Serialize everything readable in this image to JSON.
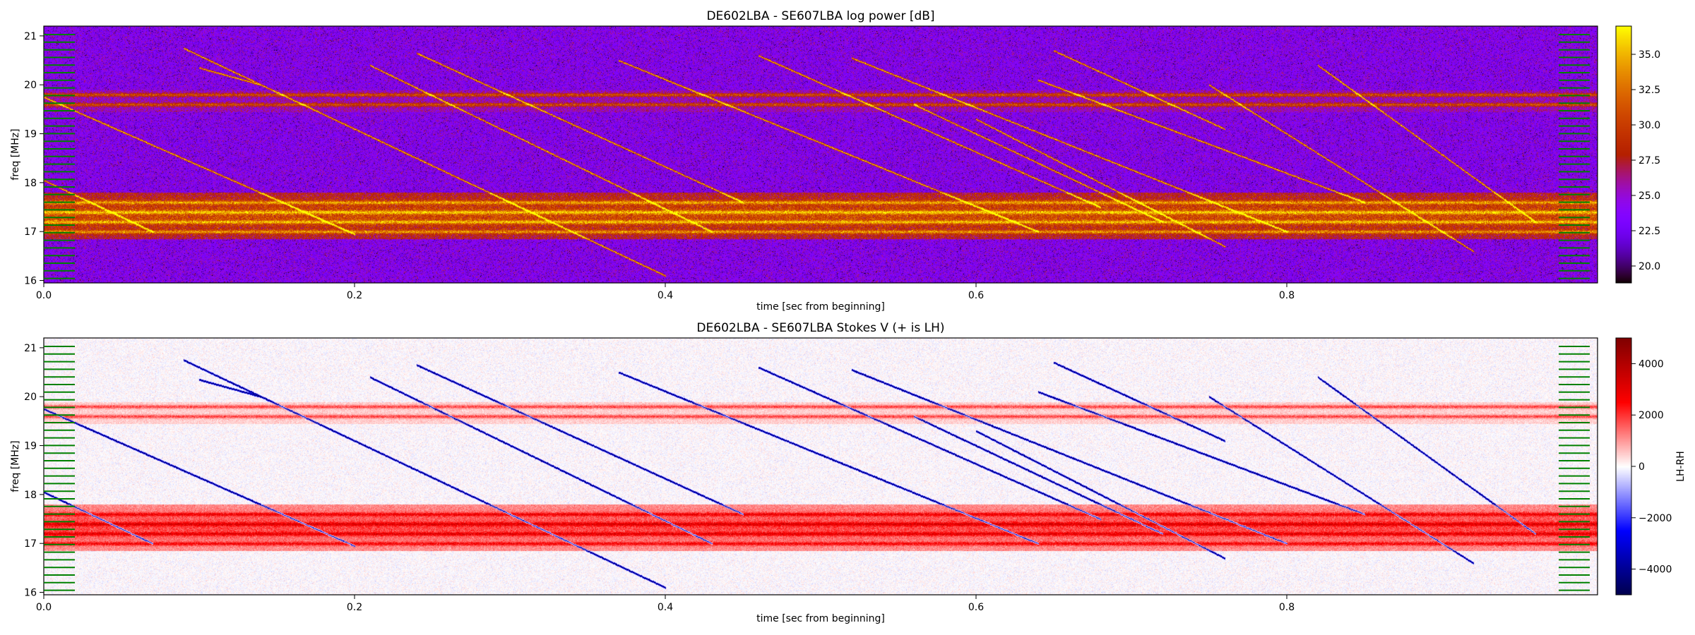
{
  "chart_data": [
    {
      "type": "heatmap",
      "title": "DE602LBA - SE607LBA  log power [dB]",
      "xlabel": "time [sec from beginning]",
      "ylabel": "freq [MHz]",
      "xlim": [
        0.0,
        1.0
      ],
      "ylim": [
        15.95,
        21.2
      ],
      "x_ticks": [
        0.0,
        0.2,
        0.4,
        0.6,
        0.8
      ],
      "x_tick_labels": [
        "0.0",
        "0.2",
        "0.4",
        "0.6",
        "0.8"
      ],
      "y_ticks": [
        16,
        17,
        18,
        19,
        20,
        21
      ],
      "y_tick_labels": [
        "16",
        "17",
        "18",
        "19",
        "20",
        "21"
      ],
      "colormap": "gnuplot",
      "colorbar": {
        "label": "",
        "range": [
          18.8,
          37.0
        ],
        "ticks": [
          20.0,
          22.5,
          25.0,
          27.5,
          30.0,
          32.5,
          35.0
        ],
        "tick_labels": [
          "20.0",
          "22.5",
          "25.0",
          "27.5",
          "30.0",
          "32.5",
          "35.0"
        ]
      },
      "background_level_db": 23.5,
      "rfi_bands_mhz": [
        17.0,
        17.2,
        17.4,
        17.6,
        19.6,
        19.8
      ],
      "drifting_tracks": [
        {
          "t0": 0.0,
          "f0": 19.75,
          "t1": 0.2,
          "f1": 16.95
        },
        {
          "t0": 0.0,
          "f0": 18.05,
          "t1": 0.07,
          "f1": 17.0
        },
        {
          "t0": 0.09,
          "f0": 20.75,
          "t1": 0.4,
          "f1": 16.1
        },
        {
          "t0": 0.1,
          "f0": 20.35,
          "t1": 0.14,
          "f1": 20.0
        },
        {
          "t0": 0.21,
          "f0": 20.4,
          "t1": 0.43,
          "f1": 17.0
        },
        {
          "t0": 0.24,
          "f0": 20.65,
          "t1": 0.45,
          "f1": 17.6
        },
        {
          "t0": 0.37,
          "f0": 20.5,
          "t1": 0.64,
          "f1": 17.0
        },
        {
          "t0": 0.46,
          "f0": 20.6,
          "t1": 0.68,
          "f1": 17.5
        },
        {
          "t0": 0.52,
          "f0": 20.55,
          "t1": 0.8,
          "f1": 17.0
        },
        {
          "t0": 0.56,
          "f0": 19.6,
          "t1": 0.72,
          "f1": 17.2
        },
        {
          "t0": 0.6,
          "f0": 19.3,
          "t1": 0.76,
          "f1": 16.7
        },
        {
          "t0": 0.64,
          "f0": 20.1,
          "t1": 0.85,
          "f1": 17.6
        },
        {
          "t0": 0.65,
          "f0": 20.7,
          "t1": 0.76,
          "f1": 19.1
        },
        {
          "t0": 0.75,
          "f0": 20.0,
          "t1": 0.92,
          "f1": 16.6
        },
        {
          "t0": 0.82,
          "f0": 20.4,
          "t1": 0.96,
          "f1": 17.2
        }
      ],
      "green_marker_columns": [
        {
          "t0": 0.0,
          "t1": 0.02
        },
        {
          "t0": 0.975,
          "t1": 0.995
        }
      ]
    },
    {
      "type": "heatmap",
      "title": "DE602LBA - SE607LBA    Stokes V (+ is LH)",
      "xlabel": "time [sec from beginning]",
      "ylabel": "freq [MHz]",
      "xlim": [
        0.0,
        1.0
      ],
      "ylim": [
        15.95,
        21.2
      ],
      "x_ticks": [
        0.0,
        0.2,
        0.4,
        0.6,
        0.8
      ],
      "x_tick_labels": [
        "0.0",
        "0.2",
        "0.4",
        "0.6",
        "0.8"
      ],
      "y_ticks": [
        16,
        17,
        18,
        19,
        20,
        21
      ],
      "y_tick_labels": [
        "16",
        "17",
        "18",
        "19",
        "20",
        "21"
      ],
      "colormap": "seismic",
      "colorbar": {
        "label": "LH-RH",
        "range": [
          -5000,
          5000
        ],
        "ticks": [
          -4000,
          -2000,
          0,
          2000,
          4000
        ],
        "tick_labels": [
          "−4000",
          "−2000",
          "0",
          "2000",
          "4000"
        ]
      },
      "rfi_bands_mhz": [
        17.0,
        17.2,
        17.4,
        17.6,
        19.6,
        19.8
      ],
      "drifting_tracks_sign": "negative",
      "green_marker_columns": [
        {
          "t0": 0.0,
          "t1": 0.02
        },
        {
          "t0": 0.975,
          "t1": 0.995
        }
      ]
    }
  ]
}
